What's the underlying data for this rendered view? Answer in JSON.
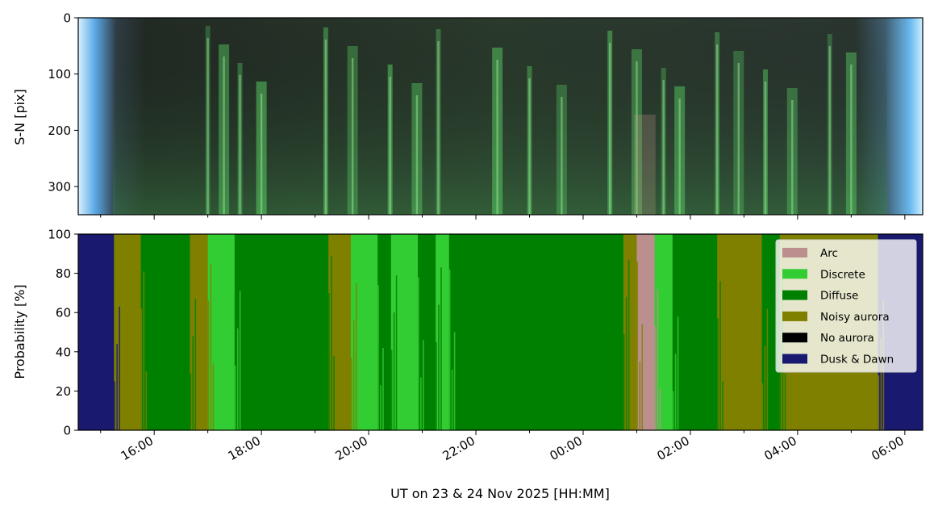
{
  "colors": {
    "arc": "#bc8f8f",
    "discrete": "#32cd32",
    "diffuse": "#008000",
    "noisy": "#808000",
    "noaurora": "#000000",
    "duskdawn": "#191970",
    "keogram_dark": "#252a25",
    "keogram_twilight": "#86c6f2"
  },
  "chart_data": [
    {
      "type": "heatmap",
      "title": "",
      "ylabel": "S-N [pix]",
      "ylim": [
        350,
        0
      ],
      "yticks": [
        0,
        100,
        200,
        300
      ],
      "ytick_labels": [
        "0",
        "100",
        "200",
        "300"
      ],
      "description_series": [
        {
          "name": "aurora_streak_times_h",
          "values": [
            17.0,
            17.3,
            17.6,
            18.0,
            19.2,
            19.7,
            20.4,
            20.9,
            21.3,
            22.4,
            23.0,
            23.6,
            0.5,
            1.0,
            1.5,
            1.8,
            2.5,
            2.9,
            3.4,
            3.9,
            4.6,
            5.0
          ]
        }
      ]
    },
    {
      "type": "area",
      "title": "",
      "xlabel": "UT on 23 & 24 Nov 2025 [HH:MM]",
      "ylabel": "Probability [%]",
      "ylim": [
        0,
        100
      ],
      "yticks": [
        0,
        20,
        40,
        60,
        80,
        100
      ],
      "ytick_labels": [
        "0",
        "20",
        "40",
        "60",
        "80",
        "100"
      ],
      "xlim": [
        "2025-11-23T14:35",
        "2025-11-24T06:20"
      ],
      "xticks": [
        "16:00",
        "18:00",
        "20:00",
        "22:00",
        "00:00",
        "02:00",
        "04:00",
        "06:00"
      ],
      "legend_position": "upper-right",
      "series": [
        {
          "name": "Dusk & Dawn",
          "color_key": "duskdawn"
        },
        {
          "name": "No aurora",
          "color_key": "noaurora"
        },
        {
          "name": "Noisy aurora",
          "color_key": "noisy"
        },
        {
          "name": "Diffuse",
          "color_key": "diffuse"
        },
        {
          "name": "Discrete",
          "color_key": "discrete"
        },
        {
          "name": "Arc",
          "color_key": "arc"
        }
      ],
      "segments": [
        {
          "start": "14:35",
          "end": "15:15",
          "class": "Dusk & Dawn"
        },
        {
          "start": "15:15",
          "end": "15:45",
          "class": "Noisy aurora"
        },
        {
          "start": "15:45",
          "end": "16:40",
          "class": "Diffuse"
        },
        {
          "start": "16:40",
          "end": "17:00",
          "class": "Noisy aurora"
        },
        {
          "start": "17:00",
          "end": "17:30",
          "class": "Discrete"
        },
        {
          "start": "17:30",
          "end": "19:15",
          "class": "Diffuse"
        },
        {
          "start": "19:15",
          "end": "19:40",
          "class": "Noisy aurora"
        },
        {
          "start": "19:40",
          "end": "20:10",
          "class": "Discrete"
        },
        {
          "start": "20:10",
          "end": "20:25",
          "class": "Diffuse"
        },
        {
          "start": "20:25",
          "end": "20:55",
          "class": "Discrete"
        },
        {
          "start": "20:55",
          "end": "21:15",
          "class": "Diffuse"
        },
        {
          "start": "21:15",
          "end": "21:30",
          "class": "Discrete"
        },
        {
          "start": "21:30",
          "end": "00:45",
          "class": "Diffuse"
        },
        {
          "start": "00:45",
          "end": "01:00",
          "class": "Noisy aurora"
        },
        {
          "start": "01:00",
          "end": "01:20",
          "class": "Arc"
        },
        {
          "start": "01:20",
          "end": "01:40",
          "class": "Discrete"
        },
        {
          "start": "01:40",
          "end": "02:30",
          "class": "Diffuse"
        },
        {
          "start": "02:30",
          "end": "03:20",
          "class": "Noisy aurora"
        },
        {
          "start": "03:20",
          "end": "03:40",
          "class": "Diffuse"
        },
        {
          "start": "03:40",
          "end": "05:30",
          "class": "Noisy aurora"
        },
        {
          "start": "05:30",
          "end": "06:20",
          "class": "Dusk & Dawn"
        }
      ]
    }
  ],
  "legend": {
    "items": [
      {
        "label": "Arc",
        "color_key": "arc"
      },
      {
        "label": "Discrete",
        "color_key": "discrete"
      },
      {
        "label": "Diffuse",
        "color_key": "diffuse"
      },
      {
        "label": "Noisy aurora",
        "color_key": "noisy"
      },
      {
        "label": "No aurora",
        "color_key": "noaurora"
      },
      {
        "label": "Dusk & Dawn",
        "color_key": "duskdawn"
      }
    ]
  },
  "xaxis": {
    "title": "UT on 23 & 24 Nov 2025 [HH:MM]",
    "tick_labels": [
      "16:00",
      "18:00",
      "20:00",
      "22:00",
      "00:00",
      "02:00",
      "04:00",
      "06:00"
    ]
  }
}
